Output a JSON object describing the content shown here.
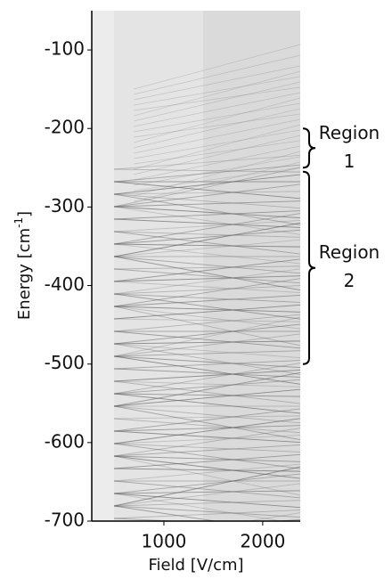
{
  "chart_data": {
    "type": "image",
    "xlabel": "Field [V/cm]",
    "ylabel": [
      "Energy [cm",
      "-1",
      "]"
    ],
    "xlim": [
      270,
      2380
    ],
    "ylim": [
      -700,
      -50
    ],
    "xticks": [
      1000,
      2000
    ],
    "yticks": [
      -100,
      -200,
      -300,
      -400,
      -500,
      -600,
      -700
    ],
    "annotations": [
      {
        "label": [
          "Region",
          "1"
        ],
        "y_range": [
          -200,
          -250
        ]
      },
      {
        "label": [
          "Region",
          "2"
        ],
        "y_range": [
          -255,
          -500
        ]
      }
    ]
  }
}
